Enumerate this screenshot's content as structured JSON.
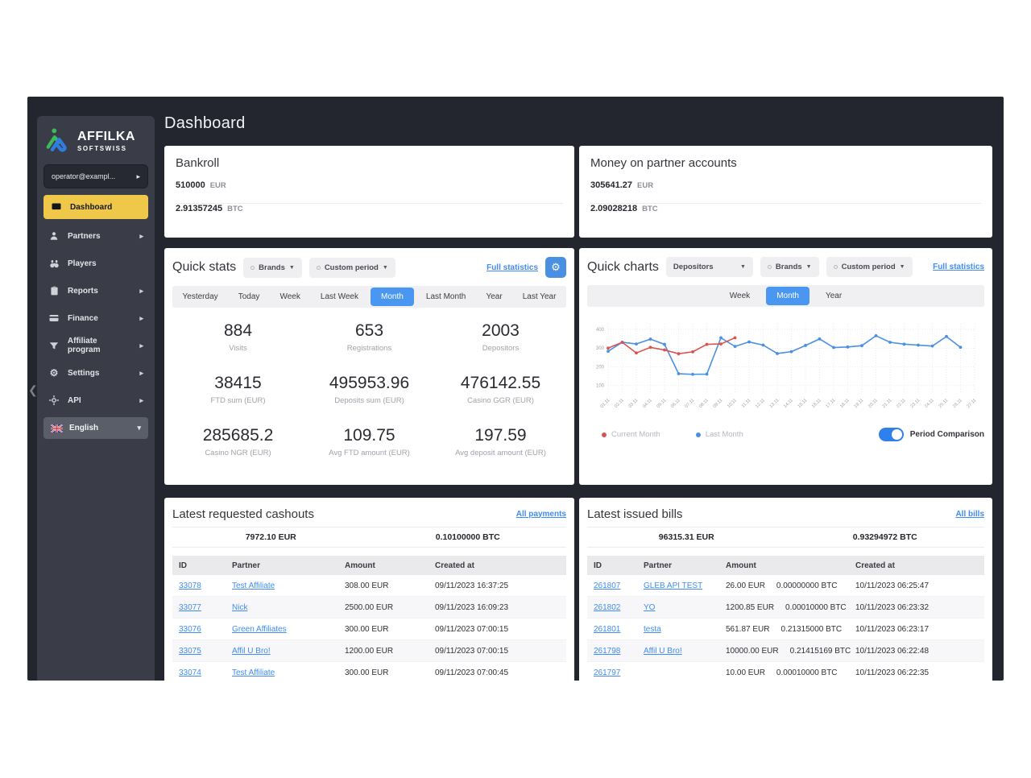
{
  "app": {
    "title": "Dashboard"
  },
  "colors": {
    "window_bg": "#24262f",
    "sidebar_bg": "#3a3d48",
    "active_yellow": "#efc84a",
    "accent_blue": "#4a90e2",
    "tab_blue": "#4a97f2",
    "link_blue": "#3f8cf3",
    "toggle_blue": "#2f80ed",
    "chart_red": "#d9534f",
    "chart_blue": "#4a90e2",
    "logo_green": "#3cb95b",
    "logo_blue": "#2f7de1"
  },
  "sidebar": {
    "brand": {
      "name": "AFFILKA",
      "subname": "SOFTSWISS"
    },
    "account": {
      "label": "operator@exampl...",
      "arrow": "▸"
    },
    "items": [
      {
        "label": "Dashboard",
        "icon": "dashboard-icon",
        "active": true
      },
      {
        "label": "Partners",
        "icon": "partners-icon",
        "arrow": "▸"
      },
      {
        "label": "Players",
        "icon": "players-icon"
      },
      {
        "label": "Reports",
        "icon": "reports-icon",
        "arrow": "▸"
      },
      {
        "label": "Finance",
        "icon": "finance-icon",
        "arrow": "▸"
      },
      {
        "label": "Affiliate program",
        "icon": "affiliate-program-icon",
        "arrow": "▸"
      },
      {
        "label": "Settings",
        "icon": "settings-icon",
        "arrow": "▸"
      },
      {
        "label": "API",
        "icon": "api-icon",
        "arrow": "▸"
      }
    ],
    "language": {
      "label": "English",
      "icon": "uk-flag-icon",
      "arrow": "▾"
    },
    "collapse": "❮"
  },
  "cards": {
    "bankroll": {
      "title": "Bankroll",
      "eur_value": "510000",
      "eur_label": "EUR",
      "btc_value": "2.91357245",
      "btc_label": "BTC"
    },
    "partner_accounts": {
      "title": "Money on partner accounts",
      "eur_value": "305641.27",
      "eur_label": "EUR",
      "btc_value": "2.09028218",
      "btc_label": "BTC"
    }
  },
  "quick_stats": {
    "title": "Quick stats",
    "filters": {
      "brands": "Brands",
      "period": "Custom period"
    },
    "full_statistics": "Full statistics",
    "tabs": [
      "Yesterday",
      "Today",
      "Week",
      "Last Week",
      "Month",
      "Last Month",
      "Year",
      "Last Year"
    ],
    "active_tab": "Month",
    "stats": [
      {
        "value": "884",
        "label": "Visits"
      },
      {
        "value": "653",
        "label": "Registrations"
      },
      {
        "value": "2003",
        "label": "Depositors"
      },
      {
        "value": "38415",
        "label": "FTD sum (EUR)"
      },
      {
        "value": "495953.96",
        "label": "Deposits sum (EUR)"
      },
      {
        "value": "476142.55",
        "label": "Casino GGR (EUR)"
      },
      {
        "value": "285685.2",
        "label": "Casino NGR (EUR)"
      },
      {
        "value": "109.75",
        "label": "Avg FTD amount (EUR)"
      },
      {
        "value": "197.59",
        "label": "Avg deposit amount (EUR)"
      }
    ]
  },
  "quick_charts": {
    "title": "Quick charts",
    "metric": "Depositors",
    "filters": {
      "brands": "Brands",
      "period": "Custom period"
    },
    "full_statistics": "Full statistics",
    "tabs": [
      "Week",
      "Month",
      "Year"
    ],
    "active_tab": "Month",
    "toggle_label": "Period Comparison",
    "toggle_on": true
  },
  "chart_data": {
    "type": "line",
    "title": "Depositors",
    "categories": [
      "01.11",
      "02.11",
      "03.11",
      "04.11",
      "05.11",
      "06.11",
      "07.11",
      "08.11",
      "09.11",
      "10.11",
      "11.11",
      "12.11",
      "13.11",
      "14.11",
      "15.11",
      "16.11",
      "17.11",
      "18.11",
      "19.11",
      "20.11",
      "21.11",
      "22.11",
      "23.11",
      "24.11",
      "25.11",
      "26.11",
      "27.11"
    ],
    "yticks": [
      100,
      200,
      300,
      400
    ],
    "ylim": [
      60,
      430
    ],
    "grid": true,
    "legend_position": "bottom",
    "series": [
      {
        "name": "Current Month",
        "color": "#d9534f",
        "values": [
          300,
          331,
          274,
          304,
          290,
          270,
          280,
          320,
          322,
          355
        ]
      },
      {
        "name": "Last Month",
        "color": "#4a90e2",
        "values": [
          283,
          331,
          322,
          348,
          320,
          163,
          160,
          161,
          355,
          309,
          333,
          316,
          271,
          281,
          314,
          349,
          303,
          306,
          313,
          366,
          331,
          321,
          316,
          311,
          362,
          304,
          null
        ]
      }
    ]
  },
  "cashouts": {
    "title": "Latest requested cashouts",
    "link": "All payments",
    "summary": {
      "eur": "7972.10 EUR",
      "btc": "0.10100000 BTC"
    },
    "columns": [
      "ID",
      "Partner",
      "Amount",
      "Created at"
    ],
    "rows": [
      {
        "id": "33078",
        "partner": "Test Affiliate",
        "amount": "308.00 EUR",
        "created": "09/11/2023 16:37:25"
      },
      {
        "id": "33077",
        "partner": "Nick",
        "amount": "2500.00 EUR",
        "created": "09/11/2023 16:09:23"
      },
      {
        "id": "33076",
        "partner": "Green Affiliates",
        "amount": "300.00 EUR",
        "created": "09/11/2023 07:00:15"
      },
      {
        "id": "33075",
        "partner": "Affil U Bro!",
        "amount": "1200.00 EUR",
        "created": "09/11/2023 07:00:15"
      },
      {
        "id": "33074",
        "partner": "Test Affiliate",
        "amount": "300.00 EUR",
        "created": "09/11/2023 07:00:45"
      }
    ]
  },
  "bills": {
    "title": "Latest issued bills",
    "link": "All bills",
    "summary": {
      "eur": "96315.31 EUR",
      "btc": "0.93294972 BTC"
    },
    "columns": [
      "ID",
      "Partner",
      "Amount",
      "Created at"
    ],
    "rows": [
      {
        "id": "261807",
        "partner": "GLEB API TEST",
        "amount_eur": "26.00 EUR",
        "amount_btc": "0.00000000 BTC",
        "created": "10/11/2023 06:25:47"
      },
      {
        "id": "261802",
        "partner": "YO",
        "amount_eur": "1200.85 EUR",
        "amount_btc": "0.00010000 BTC",
        "created": "10/11/2023 06:23:32"
      },
      {
        "id": "261801",
        "partner": "testa",
        "amount_eur": "561.87 EUR",
        "amount_btc": "0.21315000 BTC",
        "created": "10/11/2023 06:23:17"
      },
      {
        "id": "261798",
        "partner": "Affil U Bro!",
        "amount_eur": "10000.00 EUR",
        "amount_btc": "0.21415169 BTC",
        "created": "10/11/2023 06:22:48"
      },
      {
        "id": "261797",
        "partner": "",
        "amount_eur": "10.00 EUR",
        "amount_btc": "0.00010000 BTC",
        "created": "10/11/2023 06:22:35"
      }
    ]
  }
}
